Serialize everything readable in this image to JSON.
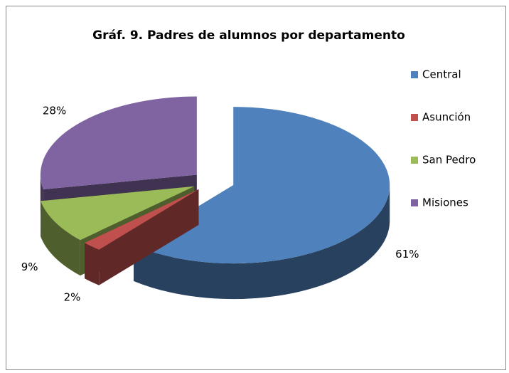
{
  "chart_data": {
    "type": "pie",
    "title": "Gráf. 9. Padres de alumnos por departamento",
    "categories": [
      "Central",
      "Asunción",
      "San Pedro",
      "Misiones"
    ],
    "values": [
      61,
      2,
      9,
      28
    ],
    "value_labels": [
      "61%",
      "2%",
      "9%",
      "28%"
    ],
    "colors": [
      "#4f81bd",
      "#c0504d",
      "#9bbb59",
      "#8064a2"
    ],
    "legend": "right"
  }
}
